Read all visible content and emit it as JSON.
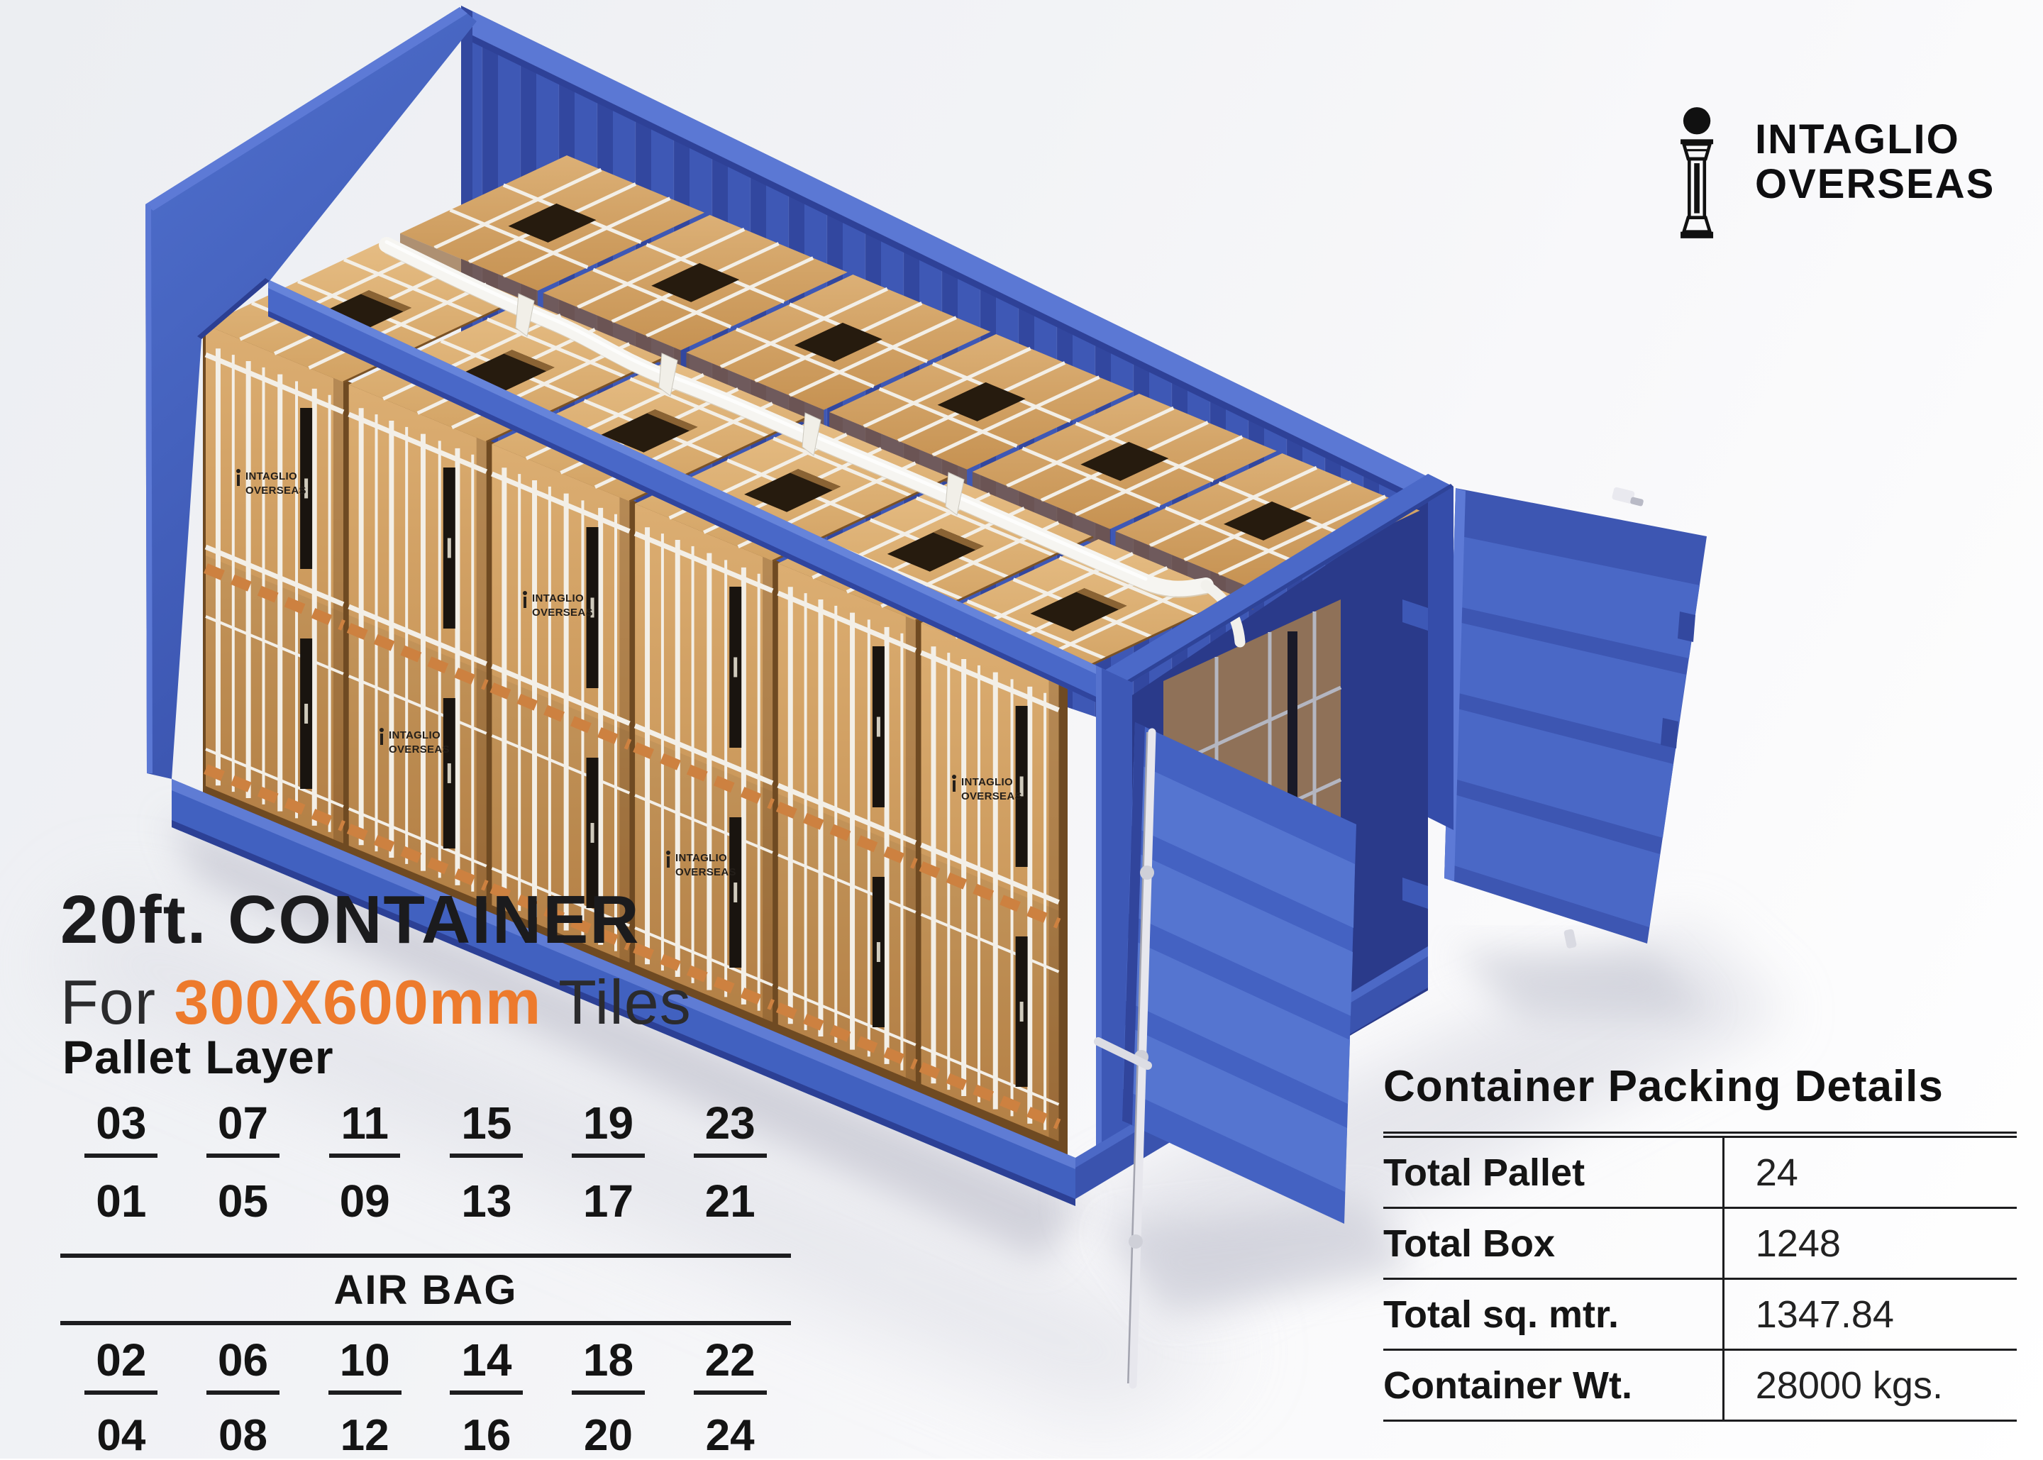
{
  "brand": {
    "line1": "INTAGLIO",
    "line2": "OVERSEAS"
  },
  "title": {
    "line1": "20ft. CONTAINER",
    "line2_prefix": "For ",
    "line2_highlight": "300X600mm",
    "line2_suffix": " Tiles"
  },
  "pallet_layer": {
    "heading": "Pallet Layer",
    "top_row": [
      "03",
      "07",
      "11",
      "15",
      "19",
      "23"
    ],
    "second_row": [
      "01",
      "05",
      "09",
      "13",
      "17",
      "21"
    ],
    "middle_label": "AIR BAG",
    "third_row": [
      "02",
      "06",
      "10",
      "14",
      "18",
      "22"
    ],
    "bottom_row": [
      "04",
      "08",
      "12",
      "16",
      "20",
      "24"
    ]
  },
  "packing_details": {
    "heading": "Container Packing Details",
    "rows": [
      {
        "label": "Total Pallet",
        "value": "24"
      },
      {
        "label": "Total Box",
        "value": "1248"
      },
      {
        "label": "Total sq. mtr.",
        "value": "1347.84"
      },
      {
        "label": "Container Wt.",
        "value": "28000 kgs."
      }
    ]
  },
  "illustration": {
    "description": "20ft blue shipping container cutaway filled with strapped wooden tile pallets, doors open",
    "box_print_line1": "INTAGLIO",
    "box_print_line2": "OVERSEAS"
  },
  "colors": {
    "accent_orange": "#ed7a2c",
    "container_blue": "#4765c4",
    "wood": "#cf9d61",
    "text_dark": "#1b1b1d"
  }
}
